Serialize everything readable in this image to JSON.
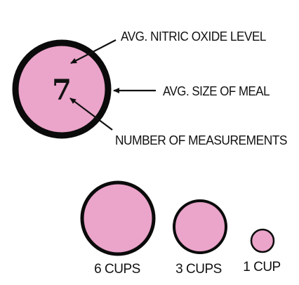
{
  "colors": {
    "fill": "#EBA4CA",
    "stroke": "#0b0b0b",
    "text": "#111111"
  },
  "legend": {
    "count": "7",
    "label_nitric": "AVG. NITRIC OXIDE LEVEL",
    "label_meal": "AVG. SIZE OF MEAL",
    "label_measurements": "NUMBER OF MEASUREMENTS"
  },
  "size_key": [
    {
      "label": "6 CUPS",
      "cups": 6
    },
    {
      "label": "3 CUPS",
      "cups": 3
    },
    {
      "label": "1 CUP",
      "cups": 1
    }
  ]
}
